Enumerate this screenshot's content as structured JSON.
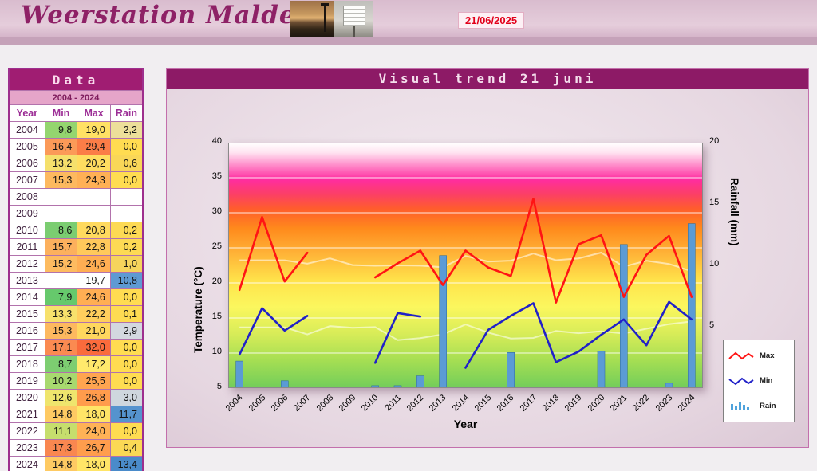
{
  "header": {
    "site_title": "Weerstation Malderen",
    "date": "21/06/2025"
  },
  "data_table": {
    "title": "Data",
    "subtitle": "2004 - 2024",
    "columns": [
      "Year",
      "Min",
      "Max",
      "Rain"
    ],
    "rows": [
      {
        "year": "2004",
        "min": "9,8",
        "max": "19,0",
        "rain": "2,2",
        "min_bg": "#94D56F",
        "max_bg": "#FFE164",
        "rain_bg": "#EDDF9A"
      },
      {
        "year": "2005",
        "min": "16,4",
        "max": "29,4",
        "rain": "0,0",
        "min_bg": "#FB9A58",
        "max_bg": "#FB7D47",
        "rain_bg": "#FFDC51"
      },
      {
        "year": "2006",
        "min": "13,2",
        "max": "20,2",
        "rain": "0,6",
        "min_bg": "#F5E06C",
        "max_bg": "#FFDD60",
        "rain_bg": "#F9D758"
      },
      {
        "year": "2007",
        "min": "15,3",
        "max": "24,3",
        "rain": "0,0",
        "min_bg": "#FDB95F",
        "max_bg": "#FFB055",
        "rain_bg": "#FFDC51"
      },
      {
        "year": "2008",
        "min": "",
        "max": "",
        "rain": "",
        "min_bg": "#FFFFFF",
        "max_bg": "#FFFFFF",
        "rain_bg": "#FFFFFF"
      },
      {
        "year": "2009",
        "min": "",
        "max": "",
        "rain": "",
        "min_bg": "#FFFFFF",
        "max_bg": "#FFFFFF",
        "rain_bg": "#FFFFFF"
      },
      {
        "year": "2010",
        "min": "8,6",
        "max": "20,8",
        "rain": "0,2",
        "min_bg": "#7BCD71",
        "max_bg": "#FFDA5E",
        "rain_bg": "#FDDA54"
      },
      {
        "year": "2011",
        "min": "15,7",
        "max": "22,8",
        "rain": "0,2",
        "min_bg": "#FCB05D",
        "max_bg": "#FFC95B",
        "rain_bg": "#FDDA54"
      },
      {
        "year": "2012",
        "min": "15,2",
        "max": "24,6",
        "rain": "1,0",
        "min_bg": "#FDBB60",
        "max_bg": "#FFAE53",
        "rain_bg": "#F6D45C"
      },
      {
        "year": "2013",
        "min": "",
        "max": "19,7",
        "rain": "10,8",
        "min_bg": "#FFFFFF",
        "max_bg": "#FFFFFF",
        "rain_bg": "#5E9AD3"
      },
      {
        "year": "2014",
        "min": "7,9",
        "max": "24,6",
        "rain": "0,0",
        "min_bg": "#66C96C",
        "max_bg": "#FFAE53",
        "rain_bg": "#FFDC51"
      },
      {
        "year": "2015",
        "min": "13,3",
        "max": "22,2",
        "rain": "0,1",
        "min_bg": "#F7E16C",
        "max_bg": "#FFCE5D",
        "rain_bg": "#FEDB52"
      },
      {
        "year": "2016",
        "min": "15,3",
        "max": "21,0",
        "rain": "2,9",
        "min_bg": "#FDB95F",
        "max_bg": "#FFD75E",
        "rain_bg": "#D3D8DF"
      },
      {
        "year": "2017",
        "min": "17,1",
        "max": "32,0",
        "rain": "0,0",
        "min_bg": "#FA8A51",
        "max_bg": "#FA6B3C",
        "rain_bg": "#FFDC51"
      },
      {
        "year": "2018",
        "min": "8,7",
        "max": "17,2",
        "rain": "0,0",
        "min_bg": "#7DCE71",
        "max_bg": "#FFE96C",
        "rain_bg": "#FFDC51"
      },
      {
        "year": "2019",
        "min": "10,2",
        "max": "25,5",
        "rain": "0,0",
        "min_bg": "#A8D96F",
        "max_bg": "#FFA550",
        "rain_bg": "#FFDC51"
      },
      {
        "year": "2020",
        "min": "12,6",
        "max": "26,8",
        "rain": "3,0",
        "min_bg": "#EFE56D",
        "max_bg": "#FF9C4C",
        "rain_bg": "#CFD7DE"
      },
      {
        "year": "2021",
        "min": "14,8",
        "max": "18,0",
        "rain": "11,7",
        "min_bg": "#FECA63",
        "max_bg": "#FFE567",
        "rain_bg": "#5593CE"
      },
      {
        "year": "2022",
        "min": "11,1",
        "max": "24,0",
        "rain": "0,0",
        "min_bg": "#C6DE6D",
        "max_bg": "#FFB256",
        "rain_bg": "#FFDC51"
      },
      {
        "year": "2023",
        "min": "17,3",
        "max": "26,7",
        "rain": "0,4",
        "min_bg": "#F98750",
        "max_bg": "#FF9D4D",
        "rain_bg": "#FBD955"
      },
      {
        "year": "2024",
        "min": "14,8",
        "max": "18,0",
        "rain": "13,4",
        "min_bg": "#FECA63",
        "max_bg": "#FFE567",
        "rain_bg": "#4A8BCA"
      }
    ]
  },
  "panel": {
    "title": "Visual trend 21 juni"
  },
  "chart_data": {
    "type": "combo",
    "title": "Visual trend 21 juni",
    "x": [
      "2004",
      "2005",
      "2006",
      "2007",
      "2008",
      "2009",
      "2010",
      "2011",
      "2012",
      "2013",
      "2014",
      "2015",
      "2016",
      "2017",
      "2018",
      "2019",
      "2020",
      "2021",
      "2022",
      "2023",
      "2024"
    ],
    "series": [
      {
        "name": "Max",
        "type": "line",
        "axis": "left",
        "color": "#FF1414",
        "values": [
          19.0,
          29.4,
          20.2,
          24.3,
          null,
          null,
          20.8,
          22.8,
          24.6,
          19.7,
          24.6,
          22.2,
          21.0,
          32.0,
          17.2,
          25.5,
          26.8,
          18.0,
          24.0,
          26.7,
          18.0
        ]
      },
      {
        "name": "Min",
        "type": "line",
        "axis": "left",
        "color": "#2121C8",
        "values": [
          9.8,
          16.4,
          13.2,
          15.3,
          null,
          null,
          8.6,
          15.7,
          15.2,
          null,
          7.9,
          13.3,
          15.3,
          17.1,
          8.7,
          10.2,
          12.6,
          14.8,
          11.1,
          17.3,
          14.8
        ]
      },
      {
        "name": "Rain",
        "type": "bar",
        "axis": "right",
        "color": "#5B9BD5",
        "values": [
          2.2,
          0.0,
          0.6,
          0.0,
          null,
          null,
          0.2,
          0.2,
          1.0,
          10.8,
          0.0,
          0.1,
          2.9,
          0.0,
          0.0,
          0.0,
          3.0,
          11.7,
          0.0,
          0.4,
          13.4
        ]
      }
    ],
    "left_axis": {
      "label": "Temperature (°C)",
      "min": 5,
      "max": 40,
      "ticks": [
        5,
        10,
        15,
        20,
        25,
        30,
        35,
        40
      ]
    },
    "right_axis": {
      "label": "Rainfall (mm)",
      "min": 0,
      "max": 20,
      "ticks": [
        5,
        10,
        15,
        20
      ]
    },
    "x_label": "Year",
    "legend": [
      "Max",
      "Min",
      "Rain"
    ],
    "grid": "horizontal-white",
    "legend_position": "right"
  }
}
